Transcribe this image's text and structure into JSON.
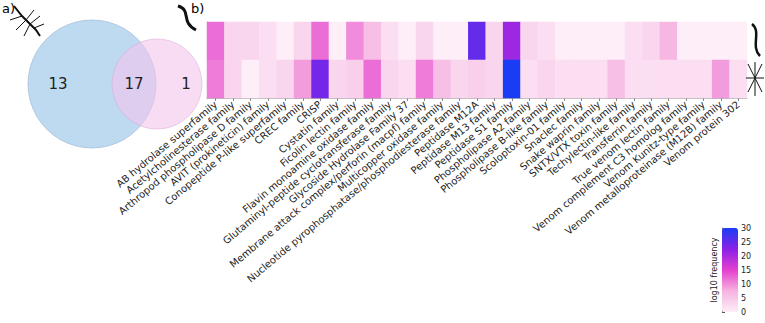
{
  "chart_data": [
    {
      "type": "venn",
      "title": "a)",
      "values": [
        13,
        17,
        1
      ],
      "colors": [
        "#b3d4ee",
        "#f3c4ec"
      ]
    },
    {
      "type": "heatmap",
      "title": "b)",
      "categories": [
        "AB hydrolase superfamily",
        "Acetylcholinesterase family",
        "Arthropod phospholipase D family",
        "AVIT (prokineticin) family",
        "Conopeptide P-like superfamily",
        "CREC family",
        "CRISP",
        "Cystatin family",
        "Ficolin lectin family",
        "Flavin monoamine oxidase family",
        "Glutaminyl-peptide cyclotransferase family",
        "Glycoside Hydrolase Family 37",
        "Membrane attack complex/perforin (macpf) family",
        "Multicopper oxidase family",
        "Nucleotide pyrophosphatase/phosphodiesterase family",
        "Peptidase M12A",
        "Peptidase M13 family",
        "Peptidase S1 family",
        "Phospholipase A2 family",
        "Phospholipase B-like family",
        "Scoloptoxin-01 family",
        "Snaclec family",
        "Snake waprin family",
        "SNTX/VTX toxin family",
        "Techylectin-like family",
        "Transferrin family",
        "True venom lectin family",
        "Venom complement C3 homolog family",
        "Venom Kunitz-type family",
        "Venom metalloproteinase (M12B) family",
        "Venom protein 302"
      ],
      "rows": [
        null,
        null
      ],
      "cells": [
        [
          12,
          3,
          3,
          2,
          0,
          3,
          12,
          0,
          10,
          6,
          2,
          0,
          3,
          0,
          0,
          25,
          3,
          21,
          3,
          2,
          0,
          0,
          0,
          0,
          2,
          3,
          7,
          0,
          0,
          0,
          0
        ],
        [
          11,
          3,
          0,
          2,
          3,
          9,
          24,
          3,
          4,
          12,
          3,
          2,
          11,
          6,
          3,
          4,
          3,
          30,
          2,
          3,
          2,
          2,
          2,
          6,
          2,
          2,
          2,
          2,
          2,
          9,
          2
        ]
      ],
      "tick_labels": "x",
      "colorbar": {
        "label": "log10 frequency",
        "range": [
          0,
          30
        ],
        "ticks": [
          0,
          5,
          10,
          15,
          20,
          25,
          30
        ],
        "colors": [
          "#fdeef8",
          "#f6b3e0",
          "#e43fd0",
          "#8a22e6",
          "#1a3cf5"
        ]
      }
    }
  ]
}
